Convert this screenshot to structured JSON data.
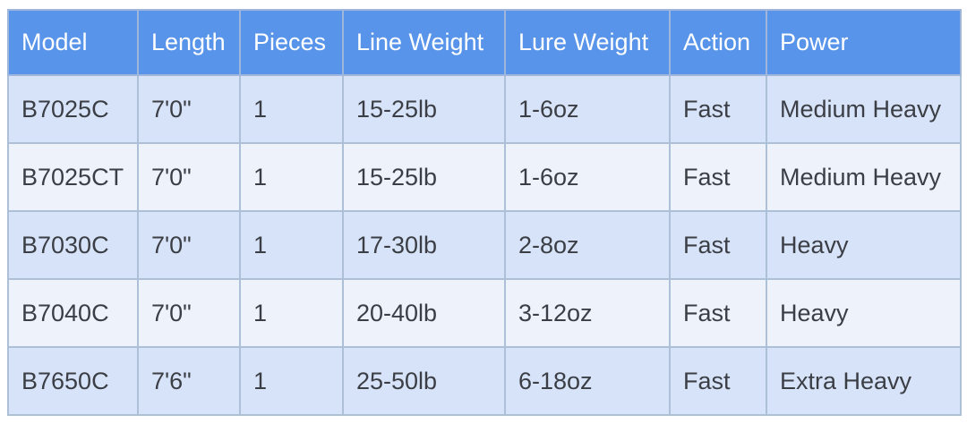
{
  "colors": {
    "header_bg": "#5894e9",
    "header_text": "#ffffff",
    "row_odd_bg": "#d7e3f8",
    "row_even_bg": "#edf2fb",
    "border": "#aebfd8",
    "cell_text": "#3b3f45"
  },
  "table": {
    "columns": [
      "Model",
      "Length",
      "Pieces",
      "Line Weight",
      "Lure Weight",
      "Action",
      "Power"
    ],
    "rows": [
      {
        "model": "B7025C",
        "length": "7'0\"",
        "pieces": "1",
        "line_weight": "15-25lb",
        "lure_weight": "1-6oz",
        "action": "Fast",
        "power": "Medium Heavy"
      },
      {
        "model": "B7025CT",
        "length": "7'0\"",
        "pieces": "1",
        "line_weight": "15-25lb",
        "lure_weight": "1-6oz",
        "action": "Fast",
        "power": "Medium Heavy"
      },
      {
        "model": "B7030C",
        "length": "7'0\"",
        "pieces": "1",
        "line_weight": "17-30lb",
        "lure_weight": "2-8oz",
        "action": "Fast",
        "power": "Heavy"
      },
      {
        "model": "B7040C",
        "length": "7'0\"",
        "pieces": "1",
        "line_weight": "20-40lb",
        "lure_weight": "3-12oz",
        "action": "Fast",
        "power": "Heavy"
      },
      {
        "model": "B7650C",
        "length": "7'6\"",
        "pieces": "1",
        "line_weight": "25-50lb",
        "lure_weight": "6-18oz",
        "action": "Fast",
        "power": "Extra Heavy"
      }
    ]
  },
  "chart_data": {
    "type": "table",
    "title": "",
    "columns": [
      "Model",
      "Length",
      "Pieces",
      "Line Weight",
      "Lure Weight",
      "Action",
      "Power"
    ],
    "rows": [
      [
        "B7025C",
        "7'0\"",
        "1",
        "15-25lb",
        "1-6oz",
        "Fast",
        "Medium Heavy"
      ],
      [
        "B7025CT",
        "7'0\"",
        "1",
        "15-25lb",
        "1-6oz",
        "Fast",
        "Medium Heavy"
      ],
      [
        "B7030C",
        "7'0\"",
        "1",
        "17-30lb",
        "2-8oz",
        "Fast",
        "Heavy"
      ],
      [
        "B7040C",
        "7'0\"",
        "1",
        "20-40lb",
        "3-12oz",
        "Fast",
        "Heavy"
      ],
      [
        "B7650C",
        "7'6\"",
        "1",
        "25-50lb",
        "6-18oz",
        "Fast",
        "Extra Heavy"
      ]
    ],
    "layout_hints": {
      "header_fill": "#5894e9",
      "row_striping": [
        "#d7e3f8",
        "#edf2fb"
      ],
      "grid": true
    }
  }
}
